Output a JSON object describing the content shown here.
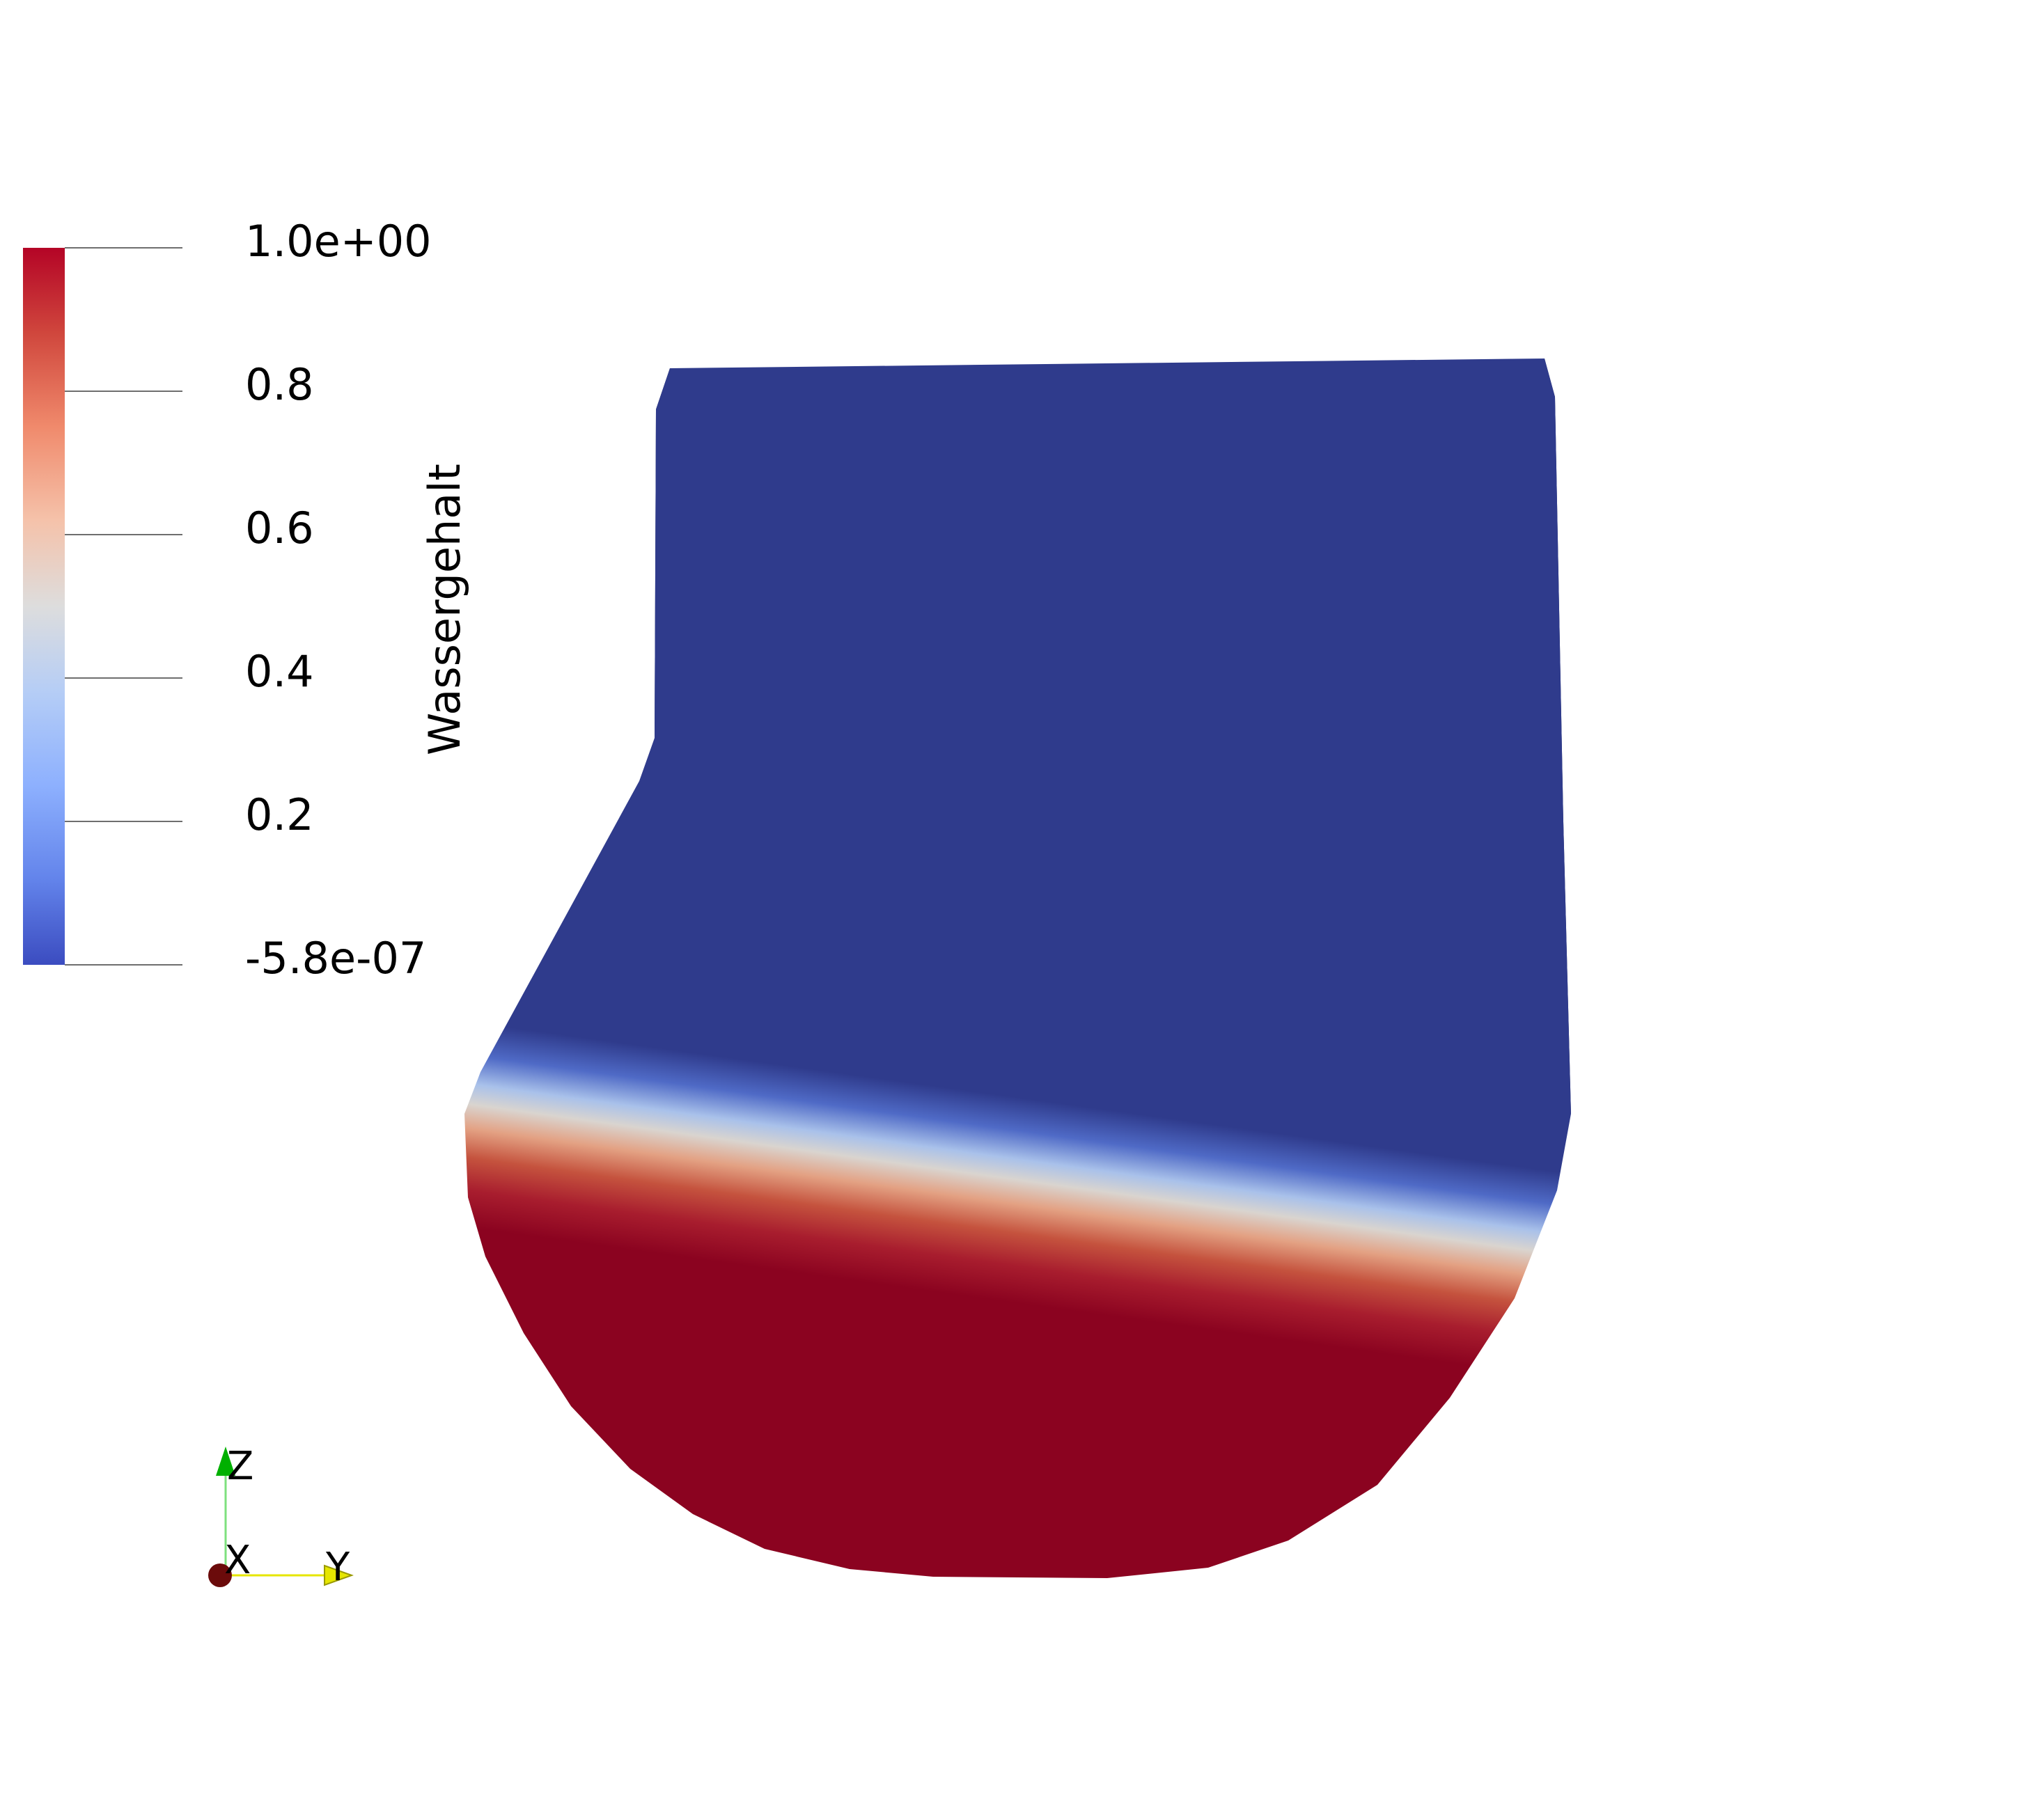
{
  "scalar_bar": {
    "title": "Wassergehalt",
    "labels": [
      "1.0e+00",
      "0.8",
      "0.6",
      "0.4",
      "0.2",
      "-5.8e-07"
    ],
    "range": [
      -5.8e-07,
      1.0
    ],
    "colormap": "Cool to Warm",
    "colors": {
      "max": "#b40426",
      "mid": "#dddddd",
      "min": "#3b4cc0"
    }
  },
  "render": {
    "field": "Wassergehalt",
    "dry_color": "#2f3b8c",
    "wet_color": "#8b0320",
    "edge_shade": "#1b234f"
  },
  "orientation_axes": {
    "x_label": "X",
    "y_label": "Y",
    "z_label": "Z",
    "colors": {
      "x": "#6b0b0b",
      "y": "#e6e600",
      "z": "#00b000"
    }
  }
}
